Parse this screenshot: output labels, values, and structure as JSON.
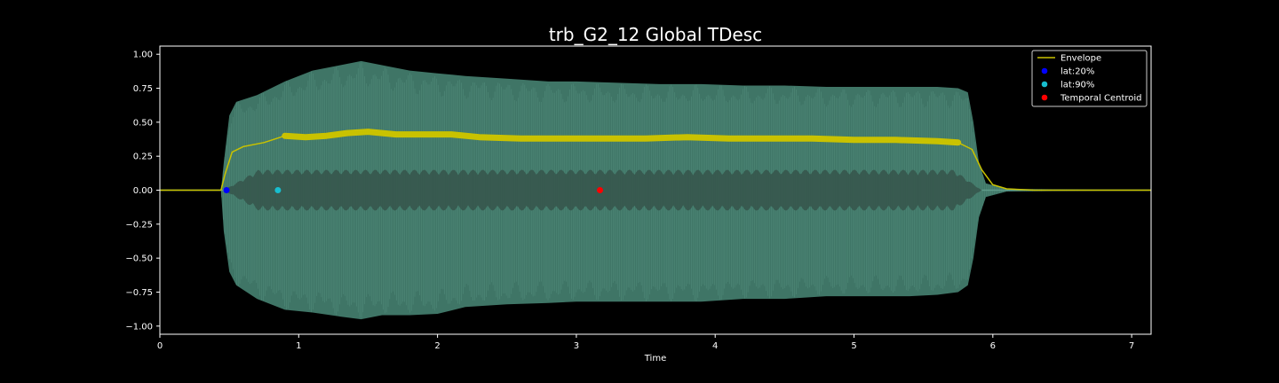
{
  "chart_data": {
    "type": "line",
    "title": "trb_G2_12 Global TDesc",
    "xlabel": "Time",
    "ylabel": "",
    "xlim": [
      0,
      7.14
    ],
    "ylim": [
      -1.06,
      1.06
    ],
    "xticks": [
      0,
      1,
      2,
      3,
      4,
      5,
      6,
      7
    ],
    "xtick_labels": [
      "0",
      "1",
      "2",
      "3",
      "4",
      "5",
      "6",
      "7"
    ],
    "yticks": [
      1.0,
      0.75,
      0.5,
      0.25,
      0.0,
      -0.25,
      -0.5,
      -0.75,
      -1.0
    ],
    "ytick_labels": [
      "1.00",
      "0.75",
      "0.50",
      "0.25",
      "0.00",
      "−0.25",
      "−0.50",
      "−0.75",
      "−1.00"
    ],
    "waveform": {
      "name": "waveform",
      "color": "#4a8a78",
      "upper": {
        "x": [
          0,
          0.44,
          0.46,
          0.5,
          0.55,
          0.7,
          0.9,
          1.1,
          1.3,
          1.45,
          1.6,
          1.8,
          2.0,
          2.2,
          2.5,
          2.8,
          3.0,
          3.3,
          3.6,
          3.9,
          4.2,
          4.5,
          4.8,
          5.1,
          5.4,
          5.6,
          5.75,
          5.82,
          5.86,
          5.9,
          5.95,
          6.1,
          7.14
        ],
        "y": [
          0.0,
          0.0,
          0.2,
          0.55,
          0.65,
          0.7,
          0.8,
          0.88,
          0.92,
          0.95,
          0.92,
          0.88,
          0.86,
          0.84,
          0.82,
          0.8,
          0.8,
          0.79,
          0.78,
          0.78,
          0.77,
          0.77,
          0.76,
          0.76,
          0.76,
          0.76,
          0.75,
          0.72,
          0.5,
          0.2,
          0.05,
          0.01,
          0.0
        ]
      },
      "lower": {
        "x": [
          0,
          0.44,
          0.46,
          0.5,
          0.55,
          0.7,
          0.9,
          1.1,
          1.3,
          1.45,
          1.6,
          1.8,
          2.0,
          2.2,
          2.5,
          2.8,
          3.0,
          3.3,
          3.6,
          3.9,
          4.2,
          4.5,
          4.8,
          5.1,
          5.4,
          5.6,
          5.75,
          5.82,
          5.86,
          5.9,
          5.95,
          6.1,
          7.14
        ],
        "y": [
          0.0,
          0.0,
          -0.3,
          -0.6,
          -0.7,
          -0.8,
          -0.88,
          -0.9,
          -0.93,
          -0.95,
          -0.92,
          -0.92,
          -0.91,
          -0.86,
          -0.84,
          -0.83,
          -0.82,
          -0.82,
          -0.82,
          -0.82,
          -0.8,
          -0.8,
          -0.78,
          -0.78,
          -0.78,
          -0.77,
          -0.75,
          -0.7,
          -0.5,
          -0.2,
          -0.05,
          -0.01,
          0.0
        ]
      },
      "inner_band": 0.13
    },
    "series": [
      {
        "name": "Envelope",
        "type": "line",
        "color": "#c9c200",
        "x": [
          0,
          0.44,
          0.47,
          0.52,
          0.6,
          0.75,
          0.9,
          1.05,
          1.2,
          1.35,
          1.5,
          1.7,
          1.9,
          2.1,
          2.3,
          2.6,
          2.9,
          3.2,
          3.5,
          3.8,
          4.1,
          4.4,
          4.7,
          5.0,
          5.3,
          5.6,
          5.75,
          5.85,
          5.92,
          6.0,
          6.1,
          6.3,
          7.14
        ],
        "y": [
          0.0,
          0.0,
          0.12,
          0.28,
          0.32,
          0.35,
          0.4,
          0.39,
          0.4,
          0.42,
          0.43,
          0.41,
          0.41,
          0.41,
          0.39,
          0.38,
          0.38,
          0.38,
          0.38,
          0.39,
          0.38,
          0.38,
          0.38,
          0.37,
          0.37,
          0.36,
          0.35,
          0.3,
          0.15,
          0.04,
          0.01,
          0.0,
          0.0
        ]
      },
      {
        "name": "lat:20%",
        "type": "scatter",
        "color": "#0000ff",
        "x": [
          0.48
        ],
        "y": [
          0.0
        ]
      },
      {
        "name": "lat:90%",
        "type": "scatter",
        "color": "#17becf",
        "x": [
          0.85
        ],
        "y": [
          0.0
        ]
      },
      {
        "name": "Temporal Centroid",
        "type": "scatter",
        "color": "#ff0000",
        "x": [
          3.17
        ],
        "y": [
          0.0
        ]
      }
    ],
    "legend": {
      "position": "upper right",
      "entries": [
        "Envelope",
        "lat:20%",
        "lat:90%",
        "Temporal Centroid"
      ]
    },
    "grid": false
  }
}
